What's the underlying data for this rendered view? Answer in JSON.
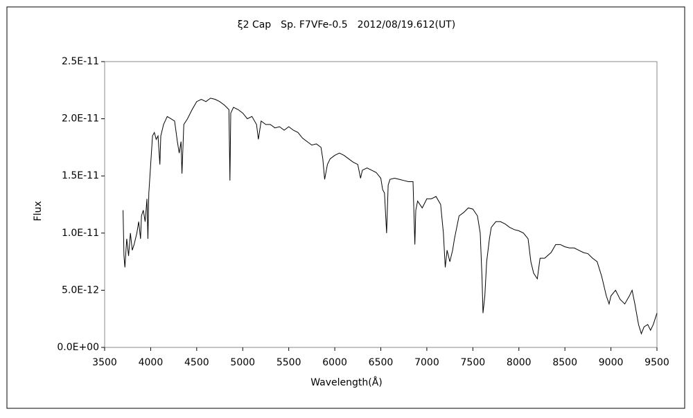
{
  "chart_data": {
    "type": "line",
    "title": "ξ2 Cap　Sp. F7VFe-0.5　2012/08/19.612(UT)",
    "x_label": "Wavelength(Å)",
    "y_label": "Flux",
    "color": "#000000",
    "xlim": [
      3500,
      9500
    ],
    "xticks": [
      3500,
      4000,
      4500,
      5000,
      5500,
      6000,
      6500,
      7000,
      7500,
      8000,
      8500,
      9000,
      9500
    ],
    "ylim": [
      0,
      2.5e-11
    ],
    "yticks": [
      {
        "value": 0,
        "label": "0.0E+00"
      },
      {
        "value": 5e-12,
        "label": "5.0E-12"
      },
      {
        "value": 1e-11,
        "label": "1.0E-11"
      },
      {
        "value": 1.5e-11,
        "label": "1.5E-11"
      },
      {
        "value": 2e-11,
        "label": "2.0E-11"
      },
      {
        "value": 2.5e-11,
        "label": "2.5E-11"
      }
    ],
    "x": [
      3700,
      3710,
      3720,
      3740,
      3760,
      3780,
      3800,
      3820,
      3850,
      3870,
      3890,
      3900,
      3920,
      3940,
      3960,
      3970,
      3980,
      4000,
      4020,
      4040,
      4060,
      4080,
      4100,
      4110,
      4140,
      4180,
      4220,
      4260,
      4290,
      4310,
      4330,
      4340,
      4360,
      4400,
      4450,
      4500,
      4550,
      4600,
      4650,
      4700,
      4750,
      4800,
      4850,
      4861,
      4870,
      4900,
      4950,
      5000,
      5050,
      5100,
      5150,
      5170,
      5200,
      5250,
      5300,
      5350,
      5400,
      5450,
      5500,
      5550,
      5600,
      5650,
      5700,
      5750,
      5800,
      5850,
      5870,
      5890,
      5920,
      5950,
      6000,
      6050,
      6100,
      6150,
      6200,
      6250,
      6280,
      6300,
      6350,
      6400,
      6450,
      6500,
      6520,
      6540,
      6563,
      6580,
      6600,
      6650,
      6700,
      6750,
      6800,
      6850,
      6870,
      6880,
      6900,
      6950,
      7000,
      7050,
      7100,
      7150,
      7180,
      7200,
      7220,
      7250,
      7280,
      7300,
      7350,
      7400,
      7450,
      7500,
      7550,
      7580,
      7600,
      7610,
      7630,
      7650,
      7680,
      7700,
      7750,
      7800,
      7850,
      7900,
      7950,
      8000,
      8050,
      8100,
      8130,
      8160,
      8200,
      8230,
      8280,
      8350,
      8400,
      8450,
      8500,
      8550,
      8600,
      8650,
      8700,
      8750,
      8800,
      8850,
      8900,
      8950,
      8980,
      9000,
      9050,
      9100,
      9150,
      9200,
      9230,
      9260,
      9300,
      9330,
      9360,
      9400,
      9430,
      9460,
      9480,
      9500
    ],
    "values": [
      1.2e-11,
      8e-12,
      7e-12,
      9.5e-12,
      8e-12,
      1e-11,
      8.5e-12,
      9e-12,
      1e-11,
      1.1e-11,
      9.5e-12,
      1.15e-11,
      1.2e-11,
      1.1e-11,
      1.3e-11,
      9.5e-12,
      1.35e-11,
      1.6e-11,
      1.85e-11,
      1.88e-11,
      1.82e-11,
      1.85e-11,
      1.6e-11,
      1.85e-11,
      1.95e-11,
      2.02e-11,
      2e-11,
      1.98e-11,
      1.8e-11,
      1.7e-11,
      1.8e-11,
      1.52e-11,
      1.95e-11,
      2e-11,
      2.08e-11,
      2.15e-11,
      2.17e-11,
      2.15e-11,
      2.18e-11,
      2.17e-11,
      2.15e-11,
      2.12e-11,
      2.08e-11,
      1.46e-11,
      2.05e-11,
      2.1e-11,
      2.08e-11,
      2.05e-11,
      2e-11,
      2.02e-11,
      1.95e-11,
      1.82e-11,
      1.98e-11,
      1.95e-11,
      1.95e-11,
      1.92e-11,
      1.93e-11,
      1.9e-11,
      1.93e-11,
      1.9e-11,
      1.88e-11,
      1.83e-11,
      1.8e-11,
      1.77e-11,
      1.78e-11,
      1.75e-11,
      1.65e-11,
      1.47e-11,
      1.6e-11,
      1.65e-11,
      1.68e-11,
      1.7e-11,
      1.68e-11,
      1.65e-11,
      1.62e-11,
      1.6e-11,
      1.48e-11,
      1.55e-11,
      1.57e-11,
      1.55e-11,
      1.53e-11,
      1.48e-11,
      1.38e-11,
      1.35e-11,
      1e-11,
      1.42e-11,
      1.47e-11,
      1.48e-11,
      1.47e-11,
      1.46e-11,
      1.45e-11,
      1.45e-11,
      9e-12,
      1.2e-11,
      1.28e-11,
      1.22e-11,
      1.3e-11,
      1.3e-11,
      1.32e-11,
      1.25e-11,
      1e-11,
      7e-12,
      8.5e-12,
      7.5e-12,
      8.5e-12,
      9.5e-12,
      1.15e-11,
      1.18e-11,
      1.22e-11,
      1.21e-11,
      1.15e-11,
      1e-11,
      6e-12,
      3e-12,
      4.5e-12,
      7.5e-12,
      9.5e-12,
      1.05e-11,
      1.1e-11,
      1.1e-11,
      1.08e-11,
      1.05e-11,
      1.03e-11,
      1.02e-11,
      1e-11,
      9.5e-12,
      7.5e-12,
      6.5e-12,
      6e-12,
      7.8e-12,
      7.8e-12,
      8.3e-12,
      9e-12,
      9e-12,
      8.8e-12,
      8.7e-12,
      8.7e-12,
      8.5e-12,
      8.3e-12,
      8.2e-12,
      7.8e-12,
      7.5e-12,
      6.2e-12,
      4.5e-12,
      3.8e-12,
      4.5e-12,
      5e-12,
      4.2e-12,
      3.8e-12,
      4.5e-12,
      5e-12,
      3.8e-12,
      2e-12,
      1.2e-12,
      1.8e-12,
      2e-12,
      1.5e-12,
      2e-12,
      2.5e-12,
      3e-12
    ]
  }
}
